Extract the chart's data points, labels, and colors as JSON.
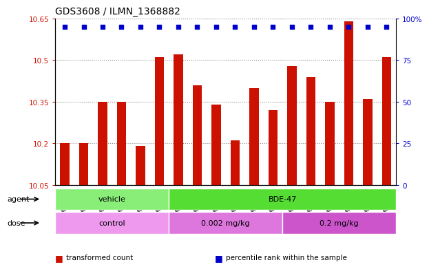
{
  "title": "GDS3608 / ILMN_1368882",
  "samples": [
    "GSM496404",
    "GSM496405",
    "GSM496406",
    "GSM496407",
    "GSM496408",
    "GSM496409",
    "GSM496410",
    "GSM496411",
    "GSM496412",
    "GSM496413",
    "GSM496414",
    "GSM496415",
    "GSM496416",
    "GSM496417",
    "GSM496418",
    "GSM496419",
    "GSM496420",
    "GSM496421"
  ],
  "bar_values": [
    10.2,
    10.2,
    10.35,
    10.35,
    10.19,
    10.51,
    10.52,
    10.41,
    10.34,
    10.21,
    10.4,
    10.32,
    10.48,
    10.44,
    10.35,
    10.64,
    10.36,
    10.51
  ],
  "ylim_left": [
    10.05,
    10.65
  ],
  "ylim_right": [
    0,
    100
  ],
  "yticks_left": [
    10.05,
    10.2,
    10.35,
    10.5,
    10.65
  ],
  "yticks_right": [
    0,
    25,
    50,
    75,
    100
  ],
  "bar_color": "#cc1100",
  "dot_color": "#0000cc",
  "bg_color": "#ffffff",
  "plot_bg": "#ffffff",
  "grid_color": "#888888",
  "agent_groups": [
    {
      "label": "vehicle",
      "start": 0,
      "end": 5,
      "color": "#88ee77"
    },
    {
      "label": "BDE-47",
      "start": 6,
      "end": 17,
      "color": "#55dd33"
    }
  ],
  "dose_groups": [
    {
      "label": "control",
      "start": 0,
      "end": 5,
      "color": "#ee99ee"
    },
    {
      "label": "0.002 mg/kg",
      "start": 6,
      "end": 11,
      "color": "#dd77dd"
    },
    {
      "label": "0.2 mg/kg",
      "start": 12,
      "end": 17,
      "color": "#cc55cc"
    }
  ],
  "legend_items": [
    {
      "color": "#cc1100",
      "label": "transformed count"
    },
    {
      "color": "#0000cc",
      "label": "percentile rank within the sample"
    }
  ],
  "label_agent": "agent",
  "label_dose": "dose",
  "title_fontsize": 10,
  "tick_fontsize": 7.5,
  "label_fontsize": 8,
  "bar_width": 0.5
}
